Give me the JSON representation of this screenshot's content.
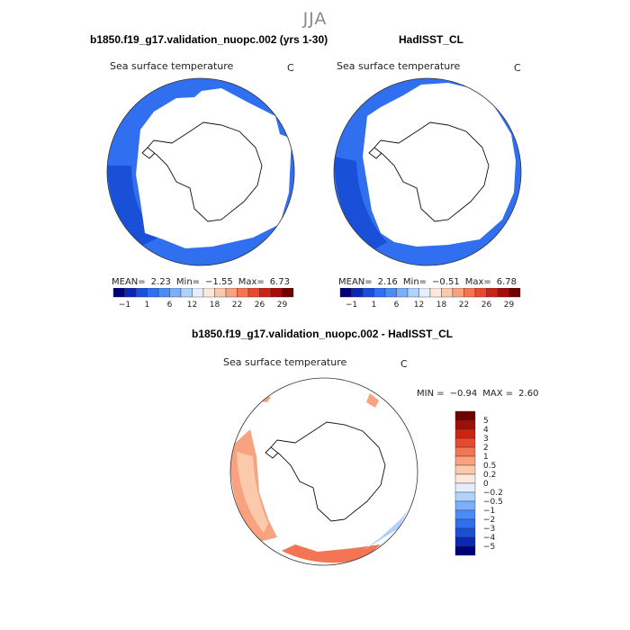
{
  "page_title": "JJA",
  "panels": [
    {
      "title": "b1850.f19_g17.validation_nuopc.002 (yrs 1-30)",
      "variable": "Sea surface temperature",
      "units": "C",
      "stats": {
        "mean_label": "MEAN=",
        "mean": "2.23",
        "min_label": "Min=",
        "min": "−1.55",
        "max_label": "Max=",
        "max": "6.73"
      }
    },
    {
      "title": "HadISST_CL",
      "variable": "Sea surface temperature",
      "units": "C",
      "stats": {
        "mean_label": "MEAN=",
        "mean": "2.16",
        "min_label": "Min=",
        "min": "−0.51",
        "max_label": "Max=",
        "max": "6.78"
      }
    },
    {
      "title": "b1850.f19_g17.validation_nuopc.002 - HadISST_CL",
      "variable": "Sea surface temperature",
      "units": "C",
      "stats": {
        "min_label": "MIN =",
        "min": "−0.94",
        "max_label": "MAX =",
        "max": "2.60"
      }
    }
  ],
  "colorbar_abs": {
    "colors": [
      "#00007a",
      "#0a28b4",
      "#1a4fd8",
      "#2f6ff0",
      "#4a8cf7",
      "#7ab0fa",
      "#b0d2fc",
      "#e4eefe",
      "#fde9dc",
      "#fcc9ad",
      "#f9a27f",
      "#f37553",
      "#e8482c",
      "#cc2414",
      "#a30d07",
      "#6e0000"
    ],
    "tick_labels": [
      "−1",
      "1",
      "6",
      "12",
      "18",
      "22",
      "26",
      "29"
    ]
  },
  "colorbar_diff": {
    "colors": [
      "#00007a",
      "#0a28b4",
      "#1a4fd8",
      "#2f6ff0",
      "#4a8cf7",
      "#7ab0fa",
      "#b0d2fc",
      "#e4eefe",
      "#fde9dc",
      "#fcc9ad",
      "#f9a27f",
      "#f37553",
      "#e8482c",
      "#cc2414",
      "#a30d07",
      "#6e0000"
    ],
    "tick_labels": [
      "5",
      "4",
      "3",
      "2",
      "1",
      "0.5",
      "0.2",
      "0",
      "−0.2",
      "−0.5",
      "−1",
      "−2",
      "−3",
      "−4",
      "−5"
    ]
  },
  "colors": {
    "ocean_abs_main": "#2f6ff0",
    "ocean_abs_deep": "#1a4fd8",
    "diff_warm": "#f9a27f",
    "diff_mild": "#fcc9ad",
    "diff_strong": "#f37553",
    "diff_cool": "#b0d2fc",
    "coast": "#111111"
  }
}
